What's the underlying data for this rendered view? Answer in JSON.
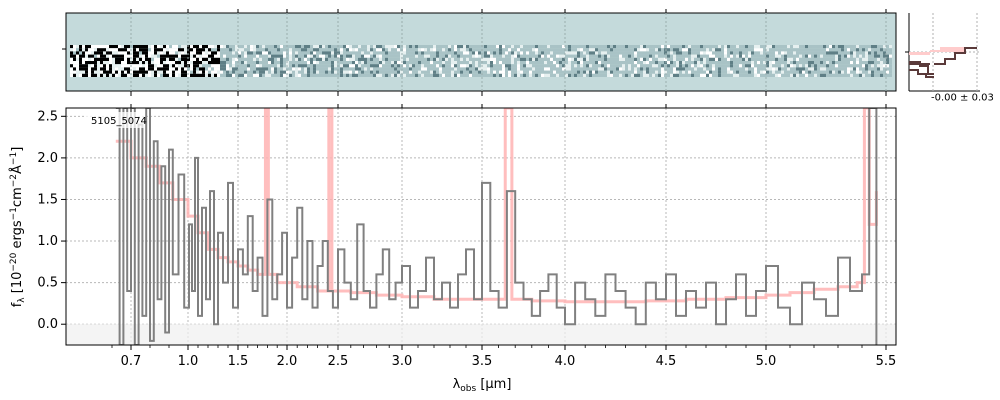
{
  "chart_data": {
    "type": "line",
    "object_label": "5105_5074",
    "xlabel": "λobs [μm]",
    "ylabel": "fλ [10⁻²⁰ ergs⁻¹cm⁻²Å⁻¹]",
    "ylim": [
      -0.25,
      2.6
    ],
    "x_ticks": [
      0.7,
      1.0,
      1.5,
      2.0,
      2.5,
      3.0,
      3.5,
      4.0,
      4.5,
      5.0,
      5.5
    ],
    "x_ticklabels": [
      "0.7",
      "1.0",
      "1.5",
      "2.0",
      "2.5",
      "3.0",
      "3.5",
      "4.0",
      "4.5",
      "5.0",
      "5.5"
    ],
    "y_ticks": [
      0.0,
      0.5,
      1.0,
      1.5,
      2.0,
      2.5
    ],
    "y_ticklabels": [
      "0.0",
      "0.5",
      "1.0",
      "1.5",
      "2.0",
      "2.5"
    ],
    "grid": true,
    "profile_label": "-0.00 ± 0.03",
    "series": [
      {
        "role": "spectrum",
        "color": "#808080",
        "x": [
          0.62,
          0.64,
          0.66,
          0.68,
          0.7,
          0.72,
          0.74,
          0.76,
          0.78,
          0.8,
          0.82,
          0.84,
          0.86,
          0.88,
          0.9,
          0.92,
          0.95,
          0.98,
          1.01,
          1.04,
          1.07,
          1.1,
          1.14,
          1.18,
          1.22,
          1.26,
          1.3,
          1.35,
          1.4,
          1.45,
          1.5,
          1.55,
          1.6,
          1.65,
          1.7,
          1.75,
          1.8,
          1.85,
          1.9,
          1.95,
          2.0,
          2.05,
          2.1,
          2.15,
          2.2,
          2.25,
          2.3,
          2.35,
          2.4,
          2.45,
          2.5,
          2.55,
          2.6,
          2.65,
          2.7,
          2.75,
          2.8,
          2.85,
          2.9,
          2.95,
          3.0,
          3.05,
          3.1,
          3.15,
          3.2,
          3.25,
          3.3,
          3.35,
          3.4,
          3.45,
          3.5,
          3.55,
          3.6,
          3.65,
          3.7,
          3.75,
          3.8,
          3.85,
          3.9,
          3.95,
          4.0,
          4.05,
          4.1,
          4.15,
          4.2,
          4.25,
          4.3,
          4.35,
          4.4,
          4.45,
          4.5,
          4.55,
          4.6,
          4.65,
          4.7,
          4.75,
          4.8,
          4.85,
          4.9,
          4.95,
          5.0,
          5.05,
          5.1,
          5.15,
          5.2,
          5.25,
          5.3,
          5.35,
          5.4,
          5.43,
          5.46
        ],
        "y": [
          2.6,
          -0.25,
          2.6,
          0.4,
          2.6,
          -0.25,
          2.4,
          0.1,
          2.6,
          -0.2,
          2.2,
          0.3,
          1.9,
          -0.1,
          2.1,
          0.6,
          1.8,
          0.2,
          1.2,
          0.4,
          2.0,
          0.1,
          1.4,
          0.3,
          1.6,
          0.0,
          1.1,
          0.5,
          1.7,
          0.2,
          0.9,
          0.6,
          1.3,
          0.4,
          0.8,
          0.1,
          1.5,
          0.3,
          0.6,
          1.1,
          0.2,
          0.8,
          1.4,
          0.3,
          1.0,
          0.2,
          0.7,
          1.0,
          0.4,
          0.2,
          0.9,
          0.5,
          0.3,
          1.2,
          0.4,
          0.2,
          0.6,
          0.9,
          0.3,
          0.5,
          0.7,
          0.2,
          0.4,
          0.8,
          0.3,
          0.5,
          0.2,
          0.6,
          0.9,
          0.3,
          1.7,
          0.4,
          0.2,
          1.6,
          0.5,
          0.3,
          0.1,
          0.4,
          0.6,
          0.2,
          0.0,
          0.5,
          0.3,
          0.1,
          0.6,
          0.4,
          0.2,
          0.0,
          0.5,
          0.3,
          0.6,
          0.1,
          0.4,
          0.2,
          0.5,
          0.0,
          0.3,
          0.6,
          0.1,
          0.4,
          0.7,
          0.2,
          0.0,
          0.5,
          0.3,
          0.1,
          0.8,
          0.4,
          0.6,
          2.6,
          -0.25
        ]
      },
      {
        "role": "model",
        "color": "#ffb3b3",
        "x": [
          0.62,
          0.7,
          0.78,
          0.85,
          0.92,
          1.0,
          1.1,
          1.2,
          1.3,
          1.4,
          1.5,
          1.6,
          1.7,
          1.75,
          1.78,
          1.81,
          1.9,
          2.0,
          2.1,
          2.2,
          2.3,
          2.38,
          2.41,
          2.44,
          2.6,
          2.8,
          3.0,
          3.2,
          3.4,
          3.6,
          3.64,
          3.66,
          3.68,
          3.8,
          4.0,
          4.2,
          4.4,
          4.6,
          4.8,
          5.0,
          5.1,
          5.2,
          5.3,
          5.38,
          5.41,
          5.43,
          5.46
        ],
        "y": [
          2.2,
          2.0,
          1.9,
          1.7,
          1.5,
          1.3,
          1.1,
          0.9,
          0.8,
          0.75,
          0.7,
          0.65,
          0.6,
          0.6,
          2.6,
          0.6,
          0.5,
          0.5,
          0.45,
          0.45,
          0.4,
          0.4,
          2.6,
          0.4,
          0.38,
          0.35,
          0.33,
          0.3,
          0.3,
          0.3,
          2.6,
          2.6,
          0.3,
          0.28,
          0.27,
          0.27,
          0.28,
          0.3,
          0.32,
          0.35,
          0.38,
          0.42,
          0.45,
          0.5,
          2.6,
          1.2,
          1.6
        ]
      }
    ]
  }
}
